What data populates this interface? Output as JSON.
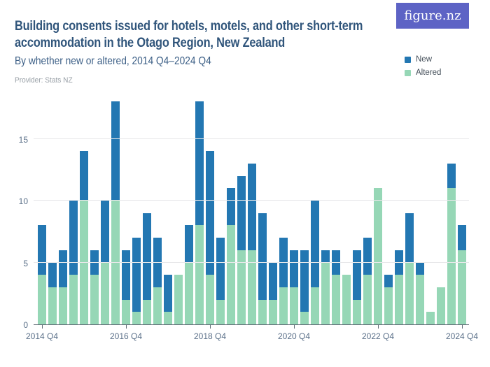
{
  "header": {
    "title_line1": "Building consents issued for hotels, motels, and other short-term",
    "title_line2": "accommodation in the Otago Region, New Zealand",
    "subtitle": "By whether new or altered, 2014 Q4–2024 Q4",
    "provider": "Provider: Stats NZ",
    "logo_text": "figure.nz"
  },
  "colors": {
    "new": "#2377b2",
    "altered": "#96d7b6",
    "logo_background": "#5d63c5",
    "title_text": "#30557b",
    "axis_text": "#5b7089",
    "axis_line": "#5f6a74",
    "gridline": "#e8e8ea"
  },
  "legend": {
    "items": [
      {
        "label": "New",
        "color": "#2377b2"
      },
      {
        "label": "Altered",
        "color": "#96d7b6"
      }
    ]
  },
  "chart_data": {
    "type": "bar",
    "stacked": true,
    "title": "Building consents issued for hotels, motels, and other short-term accommodation in the Otago Region, New Zealand",
    "subtitle": "By whether new or altered, 2014 Q4–2024 Q4",
    "xlabel": "",
    "ylabel": "",
    "ylim": [
      0,
      18
    ],
    "y_ticks": [
      0,
      5,
      10,
      15
    ],
    "grid": "horizontal",
    "legend_position": "top-right",
    "stack_order_bottom_to_top": [
      "Altered",
      "New"
    ],
    "categories": [
      "2014 Q4",
      "2015 Q1",
      "2015 Q2",
      "2015 Q3",
      "2015 Q4",
      "2016 Q1",
      "2016 Q2",
      "2016 Q3",
      "2016 Q4",
      "2017 Q1",
      "2017 Q2",
      "2017 Q3",
      "2017 Q4",
      "2018 Q1",
      "2018 Q2",
      "2018 Q3",
      "2018 Q4",
      "2019 Q1",
      "2019 Q2",
      "2019 Q3",
      "2019 Q4",
      "2020 Q1",
      "2020 Q2",
      "2020 Q3",
      "2020 Q4",
      "2021 Q1",
      "2021 Q2",
      "2021 Q3",
      "2021 Q4",
      "2022 Q1",
      "2022 Q2",
      "2022 Q3",
      "2022 Q4",
      "2023 Q1",
      "2023 Q2",
      "2023 Q3",
      "2023 Q4",
      "2024 Q1",
      "2024 Q2",
      "2024 Q3",
      "2024 Q4"
    ],
    "series": [
      {
        "name": "New",
        "color": "#2377b2",
        "values": [
          4,
          2,
          3,
          6,
          4,
          2,
          5,
          8,
          4,
          6,
          7,
          4,
          3,
          0,
          3,
          10,
          10,
          5,
          3,
          6,
          7,
          7,
          3,
          4,
          3,
          5,
          7,
          1,
          2,
          0,
          4,
          3,
          0,
          1,
          2,
          4,
          1,
          0,
          0,
          2,
          2
        ]
      },
      {
        "name": "Altered",
        "color": "#96d7b6",
        "values": [
          4,
          3,
          3,
          4,
          10,
          4,
          5,
          10,
          2,
          1,
          2,
          3,
          1,
          4,
          5,
          8,
          4,
          2,
          8,
          6,
          6,
          2,
          2,
          3,
          3,
          1,
          3,
          5,
          4,
          4,
          2,
          4,
          11,
          3,
          4,
          5,
          4,
          1,
          3,
          11,
          6
        ]
      }
    ],
    "x_ticks": [
      {
        "label": "2014 Q4",
        "index": 0
      },
      {
        "label": "2016 Q4",
        "index": 8
      },
      {
        "label": "2018 Q4",
        "index": 16
      },
      {
        "label": "2020 Q4",
        "index": 24
      },
      {
        "label": "2022 Q4",
        "index": 32
      },
      {
        "label": "2024 Q4",
        "index": 40
      }
    ]
  }
}
